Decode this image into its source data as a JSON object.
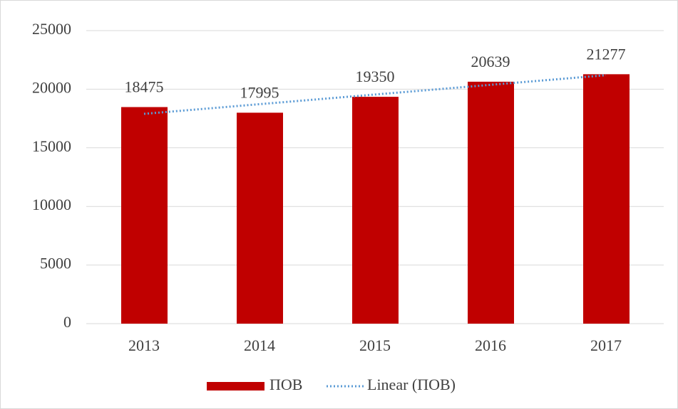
{
  "chart_data": {
    "type": "bar",
    "categories": [
      "2013",
      "2014",
      "2015",
      "2016",
      "2017"
    ],
    "series": [
      {
        "name": "ПОВ",
        "color": "#c00000",
        "values": [
          18475,
          17995,
          19350,
          20639,
          21277
        ]
      }
    ],
    "trendline": {
      "name": "Linear (ПОВ)",
      "color": "#5b9bd5",
      "values": [
        17898,
        18722,
        19547,
        20372,
        21197
      ]
    },
    "ylim": [
      0,
      25000
    ],
    "yticks": [
      0,
      5000,
      10000,
      15000,
      20000,
      25000
    ],
    "grid": true,
    "legend": "bottom"
  }
}
